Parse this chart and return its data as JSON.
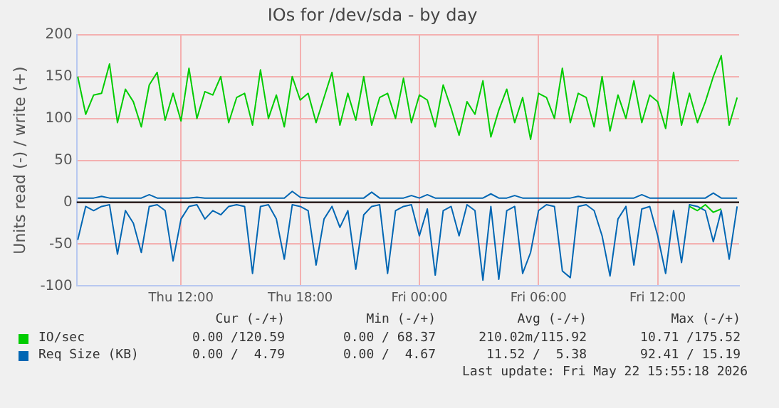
{
  "chart_data": {
    "type": "line",
    "title": "IOs for /dev/sda - by day",
    "ylabel": "Units read (-) / write (+)",
    "x": [
      "2026-05-21T06:48",
      "2026-05-21T07:12",
      "2026-05-21T07:36",
      "2026-05-21T08:00",
      "2026-05-21T08:24",
      "2026-05-21T08:48",
      "2026-05-21T09:12",
      "2026-05-21T09:36",
      "2026-05-21T10:00",
      "2026-05-21T10:24",
      "2026-05-21T10:48",
      "2026-05-21T11:12",
      "2026-05-21T11:36",
      "2026-05-21T12:00",
      "2026-05-21T12:24",
      "2026-05-21T12:48",
      "2026-05-21T13:12",
      "2026-05-21T13:36",
      "2026-05-21T14:00",
      "2026-05-21T14:24",
      "2026-05-21T14:48",
      "2026-05-21T15:12",
      "2026-05-21T15:36",
      "2026-05-21T16:00",
      "2026-05-21T16:24",
      "2026-05-21T16:48",
      "2026-05-21T17:12",
      "2026-05-21T17:36",
      "2026-05-21T18:00",
      "2026-05-21T18:24",
      "2026-05-21T18:48",
      "2026-05-21T19:12",
      "2026-05-21T19:36",
      "2026-05-21T20:00",
      "2026-05-21T20:24",
      "2026-05-21T20:48",
      "2026-05-21T21:12",
      "2026-05-21T21:36",
      "2026-05-21T22:00",
      "2026-05-21T22:24",
      "2026-05-21T22:48",
      "2026-05-21T23:12",
      "2026-05-21T23:36",
      "2026-05-22T00:00",
      "2026-05-22T00:24",
      "2026-05-22T00:48",
      "2026-05-22T01:12",
      "2026-05-22T01:36",
      "2026-05-22T02:00",
      "2026-05-22T02:24",
      "2026-05-22T02:48",
      "2026-05-22T03:12",
      "2026-05-22T03:36",
      "2026-05-22T04:00",
      "2026-05-22T04:24",
      "2026-05-22T04:48",
      "2026-05-22T05:12",
      "2026-05-22T05:36",
      "2026-05-22T06:00",
      "2026-05-22T06:24",
      "2026-05-22T06:48",
      "2026-05-22T07:12",
      "2026-05-22T07:36",
      "2026-05-22T08:00",
      "2026-05-22T08:24",
      "2026-05-22T08:48",
      "2026-05-22T09:12",
      "2026-05-22T09:36",
      "2026-05-22T10:00",
      "2026-05-22T10:24",
      "2026-05-22T10:48",
      "2026-05-22T11:12",
      "2026-05-22T11:36",
      "2026-05-22T12:00",
      "2026-05-22T12:24",
      "2026-05-22T12:48",
      "2026-05-22T13:12",
      "2026-05-22T13:36",
      "2026-05-22T14:00",
      "2026-05-22T14:24",
      "2026-05-22T14:48",
      "2026-05-22T15:12",
      "2026-05-22T15:36",
      "2026-05-22T16:00"
    ],
    "series": [
      {
        "color": "#00cc00",
        "values": [
          null,
          null,
          null,
          null,
          null,
          null,
          null,
          null,
          null,
          null,
          null,
          null,
          null,
          null,
          null,
          null,
          null,
          null,
          null,
          null,
          null,
          null,
          null,
          null,
          null,
          null,
          null,
          null,
          null,
          null,
          null,
          null,
          null,
          null,
          null,
          null,
          null,
          null,
          null,
          null,
          null,
          null,
          null,
          null,
          null,
          null,
          null,
          null,
          null,
          null,
          null,
          null,
          null,
          null,
          null,
          null,
          null,
          null,
          null,
          null,
          null,
          null,
          null,
          null,
          null,
          null,
          null,
          null,
          null,
          null,
          null,
          null,
          null,
          null,
          null,
          null,
          null,
          -5,
          -10,
          -3,
          -12,
          -8,
          null,
          null
        ]
      },
      {
        "name": "IO/sec",
        "color": "#00cc00",
        "values": [
          150,
          105,
          128,
          130,
          165,
          95,
          135,
          120,
          90,
          140,
          155,
          98,
          130,
          97,
          160,
          100,
          132,
          128,
          150,
          95,
          125,
          130,
          92,
          158,
          100,
          128,
          90,
          150,
          122,
          130,
          95,
          125,
          155,
          92,
          130,
          98,
          150,
          92,
          125,
          130,
          100,
          148,
          95,
          128,
          122,
          90,
          140,
          112,
          80,
          120,
          105,
          145,
          78,
          110,
          135,
          95,
          125,
          75,
          130,
          125,
          100,
          160,
          95,
          130,
          125,
          90,
          150,
          85,
          128,
          100,
          145,
          95,
          128,
          120,
          88,
          155,
          92,
          130,
          95,
          120,
          150,
          175,
          92,
          125
        ]
      },
      {
        "color": "#0066b3",
        "values": [
          -45,
          -5,
          -10,
          -5,
          -3,
          -62,
          -10,
          -25,
          -60,
          -5,
          -3,
          -10,
          -70,
          -20,
          -5,
          -3,
          -20,
          -10,
          -15,
          -5,
          -3,
          -5,
          -85,
          -5,
          -3,
          -20,
          -68,
          -3,
          -5,
          -10,
          -75,
          -20,
          -5,
          -30,
          -10,
          -80,
          -15,
          -5,
          -3,
          -85,
          -10,
          -5,
          -3,
          -40,
          -8,
          -87,
          -10,
          -5,
          -40,
          -3,
          -10,
          -93,
          -5,
          -92,
          -10,
          -5,
          -85,
          -60,
          -10,
          -3,
          -5,
          -82,
          -90,
          -5,
          -3,
          -10,
          -40,
          -88,
          -20,
          -5,
          -75,
          -8,
          -5,
          -40,
          -85,
          -10,
          -72,
          -3,
          -5,
          -10,
          -47,
          -10,
          -68,
          -5
        ]
      },
      {
        "name": "Req Size (KB)",
        "color": "#0066b3",
        "values": [
          5,
          5,
          5,
          7,
          5,
          5,
          5,
          5,
          5,
          9,
          5,
          5,
          5,
          5,
          5,
          6,
          5,
          5,
          5,
          5,
          5,
          5,
          5,
          5,
          5,
          5,
          5,
          13,
          6,
          5,
          5,
          5,
          5,
          5,
          5,
          5,
          5,
          12,
          5,
          5,
          5,
          5,
          8,
          5,
          9,
          5,
          5,
          5,
          5,
          5,
          5,
          5,
          10,
          5,
          5,
          8,
          5,
          5,
          5,
          5,
          5,
          5,
          5,
          7,
          5,
          5,
          5,
          5,
          5,
          5,
          5,
          9,
          5,
          5,
          5,
          5,
          5,
          5,
          5,
          5,
          11,
          5,
          5,
          5
        ]
      }
    ],
    "xlim": [
      "2026-05-21T06:45",
      "2026-05-22T16:06"
    ],
    "xticks": [
      {
        "value": "2026-05-21T12:00",
        "label": "Thu 12:00"
      },
      {
        "value": "2026-05-21T18:00",
        "label": "Thu 18:00"
      },
      {
        "value": "2026-05-22T00:00",
        "label": "Fri 00:00"
      },
      {
        "value": "2026-05-22T06:00",
        "label": "Fri 06:00"
      },
      {
        "value": "2026-05-22T12:00",
        "label": "Fri 12:00"
      }
    ],
    "ylim": [
      -100,
      200
    ],
    "yticks": [
      -100,
      -50,
      0,
      50,
      100,
      150,
      200
    ],
    "ref_lines": [
      {
        "axis": "y",
        "value": 0,
        "color": "#000000"
      }
    ],
    "grid": true,
    "legend": "bottom",
    "marker": "none",
    "line_style": "solid",
    "annotations": [
      "Cur (-/+)",
      "Min (-/+)",
      "Avg (-/+)",
      "Max (-/+)",
      "0.00 /120.59",
      "0.00 / 68.37",
      "210.02m/115.92",
      "10.71 /175.52",
      "0.00 /  4.79",
      "0.00 /  4.67",
      "11.52 /  5.38",
      "92.41 / 15.19",
      "Last update: Fri May 22 15:55:18 2026"
    ]
  }
}
